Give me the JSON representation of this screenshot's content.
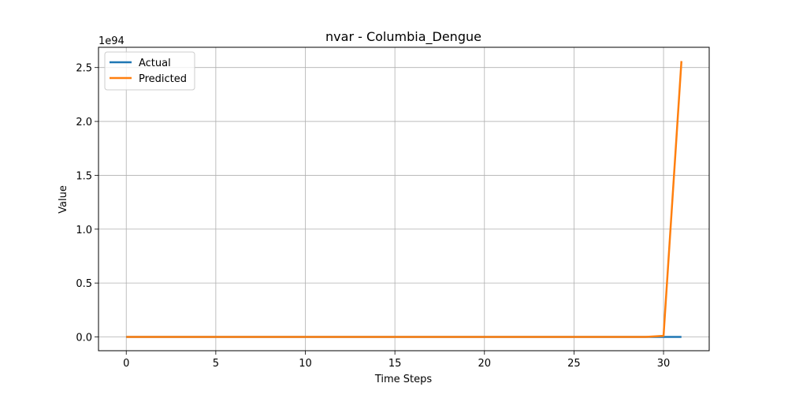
{
  "chart_data": {
    "type": "line",
    "title": "nvar - Columbia_Dengue",
    "xlabel": "Time Steps",
    "ylabel": "Value",
    "y_offset_label": "1e94",
    "xlim": [
      -1.55,
      32.55
    ],
    "ylim": [
      -0.128,
      2.688
    ],
    "x_ticks": [
      0,
      5,
      10,
      15,
      20,
      25,
      30
    ],
    "x_tick_labels": [
      "0",
      "5",
      "10",
      "15",
      "20",
      "25",
      "30"
    ],
    "y_ticks": [
      0.0,
      0.5,
      1.0,
      1.5,
      2.0,
      2.5
    ],
    "y_tick_labels": [
      "0.0",
      "0.5",
      "1.0",
      "1.5",
      "2.0",
      "2.5"
    ],
    "grid": true,
    "legend_position": "top-left",
    "x": [
      0,
      1,
      2,
      3,
      4,
      5,
      6,
      7,
      8,
      9,
      10,
      11,
      12,
      13,
      14,
      15,
      16,
      17,
      18,
      19,
      20,
      21,
      22,
      23,
      24,
      25,
      26,
      27,
      28,
      29,
      30,
      31
    ],
    "series": [
      {
        "name": "Actual",
        "color": "#1f77b4",
        "values": [
          0,
          0,
          0,
          0,
          0,
          0,
          0,
          0,
          0,
          0,
          0,
          0,
          0,
          0,
          0,
          0,
          0,
          0,
          0,
          0,
          0,
          0,
          0,
          0,
          0,
          0,
          0,
          0,
          0,
          0,
          0,
          0
        ]
      },
      {
        "name": "Predicted",
        "color": "#ff7f0e",
        "values": [
          0,
          0,
          0,
          0,
          0,
          0,
          0,
          0,
          0,
          0,
          0,
          0,
          0,
          0,
          0,
          0,
          0,
          0,
          0,
          0,
          0,
          0,
          0,
          0,
          0,
          0,
          0,
          0,
          0,
          0,
          0.01,
          2.56
        ]
      }
    ]
  }
}
